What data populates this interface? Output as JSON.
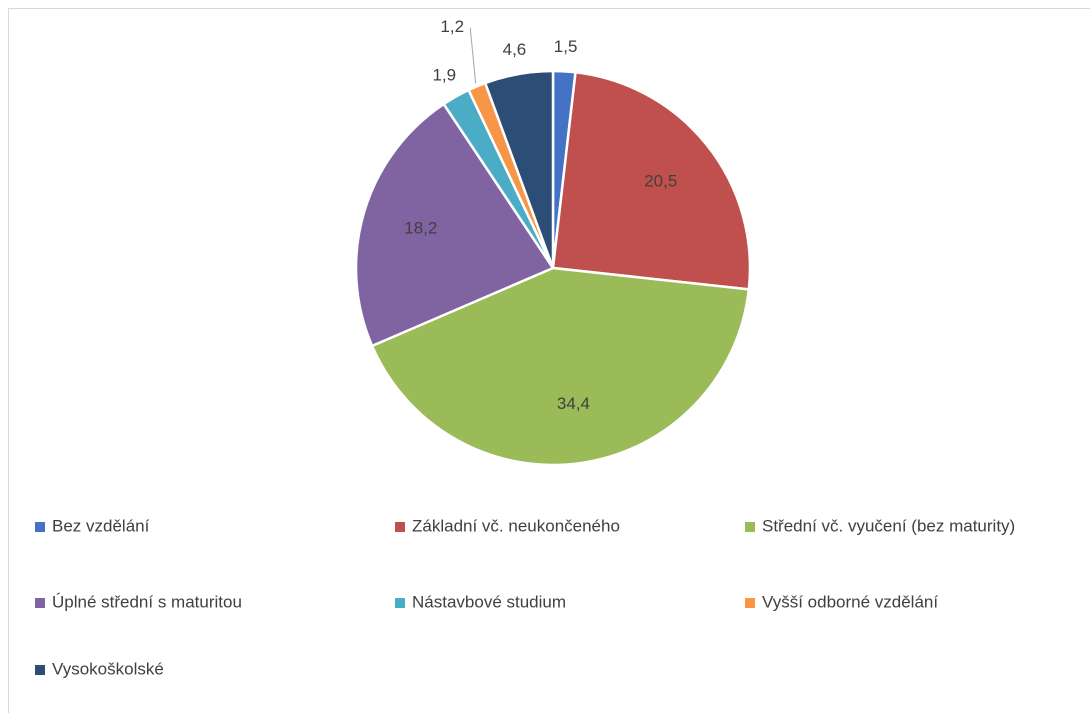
{
  "chart_data": {
    "type": "pie",
    "categories": [
      "Bez vzdělání",
      "Základní vč. neukončeného",
      "Střední vč. vyučení (bez maturity)",
      "Úplné střední s maturitou",
      "Nástavbové studium",
      "Vyšší odborné vzdělání",
      "Vysokoškolské"
    ],
    "values": [
      1.5,
      20.5,
      34.4,
      18.2,
      1.9,
      1.2,
      4.6
    ],
    "value_labels": [
      "1,5",
      "20,5",
      "34,4",
      "18,2",
      "1,9",
      "1,2",
      "4,6"
    ],
    "colors": [
      "#4472c4",
      "#c0504d",
      "#9bbb59",
      "#8064a2",
      "#4bacc6",
      "#f79646",
      "#2c4d75"
    ],
    "legend": "bottom"
  }
}
